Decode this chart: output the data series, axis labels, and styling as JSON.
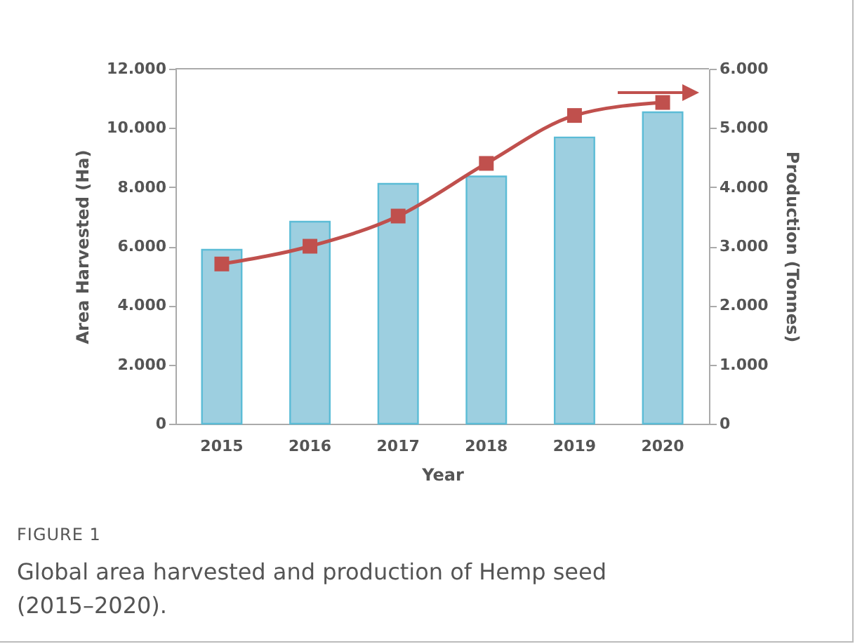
{
  "chart_data": {
    "type": "bar",
    "categories": [
      "2015",
      "2016",
      "2017",
      "2018",
      "2019",
      "2020"
    ],
    "xlabel": "Year",
    "ylabel": "Area Harvested (Ha)",
    "y2label": "Production (Tonnes)",
    "series": [
      {
        "color": "#9dcfe0",
        "values": [
          5880,
          6830,
          8110,
          8360,
          9680,
          10530
        ]
      },
      {
        "type": "line",
        "axis": "y2",
        "color": "#c0504d",
        "marker": "square",
        "values": [
          2700,
          3000,
          3510,
          4400,
          5210,
          5430
        ]
      }
    ],
    "ylim": [
      0,
      12000
    ],
    "yticks": [
      0,
      {
        "value": 2000,
        "label": "2.000"
      },
      {
        "value": 4000,
        "label": "4.000"
      },
      {
        "value": 6000,
        "label": "6.000"
      },
      {
        "value": 8000,
        "label": "8.000"
      },
      {
        "value": 10000,
        "label": "10.000"
      },
      {
        "value": 12000,
        "label": "12.000"
      }
    ],
    "y2lim": [
      0,
      6000
    ],
    "y2ticks": [
      0,
      {
        "value": 1000,
        "label": "1.000"
      },
      {
        "value": 2000,
        "label": "2.000"
      },
      {
        "value": 3000,
        "label": "3.000"
      },
      {
        "value": 4000,
        "label": "4.000"
      },
      {
        "value": 5000,
        "label": "5.000"
      },
      {
        "value": 6000,
        "label": "6.000"
      }
    ],
    "grid": false,
    "annotations": [
      "FIGURE 1",
      "Global area harvested and production of Hemp seed (2015–2020)."
    ]
  }
}
